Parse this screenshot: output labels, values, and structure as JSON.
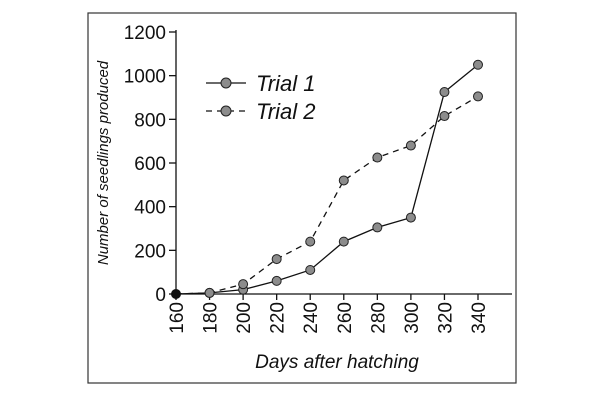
{
  "chart_data": {
    "type": "line",
    "title": "",
    "xlabel": "Days after hatching",
    "ylabel": "Number of seedlings produced",
    "x": [
      160,
      180,
      200,
      220,
      240,
      260,
      280,
      300,
      320,
      340
    ],
    "xlim": [
      160,
      340
    ],
    "ylim": [
      0,
      1200
    ],
    "yticks": [
      0,
      200,
      400,
      600,
      800,
      1000,
      1200
    ],
    "grid": false,
    "legend_position": "top-left",
    "series": [
      {
        "name": "Trial 1",
        "line_style": "solid",
        "values": [
          0,
          5,
          20,
          60,
          110,
          240,
          305,
          350,
          925,
          1050
        ]
      },
      {
        "name": "Trial 2",
        "line_style": "dashed",
        "values": [
          0,
          5,
          45,
          160,
          240,
          520,
          625,
          680,
          815,
          905
        ]
      }
    ],
    "colors": {
      "line": "#111111",
      "marker_fill": "#8c8c8c",
      "marker_stroke": "#222222",
      "origin_marker": "#111111",
      "frame": "#333333"
    }
  }
}
